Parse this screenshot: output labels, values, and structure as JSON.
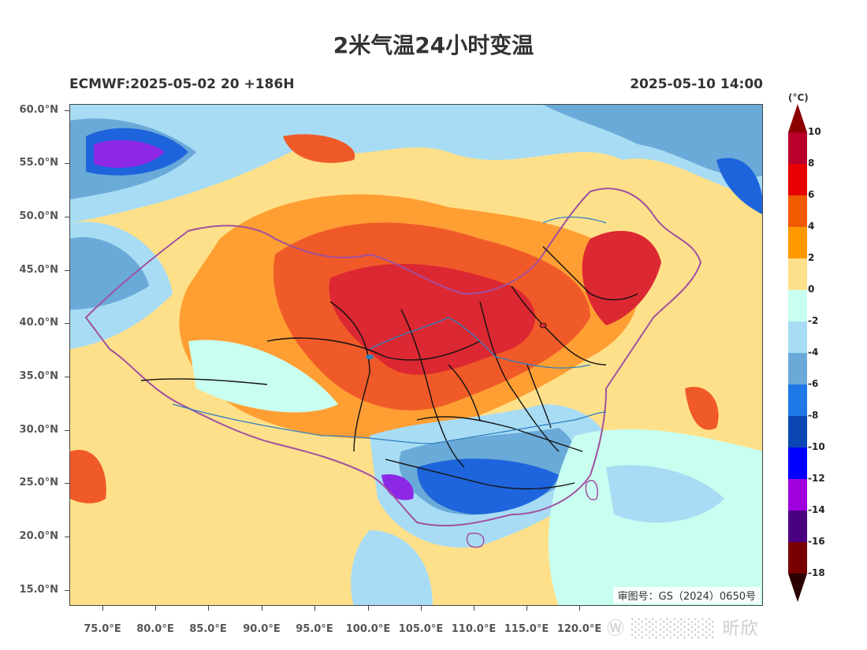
{
  "title": "2米气温24小时变温",
  "model_run": "ECMWF:2025-05-02 20 +186H",
  "valid_time": "2025-05-10 14:00",
  "unit": "(°C)",
  "approval_number": "审图号：GS（2024）0650号",
  "watermark": "Ⓦ ░░░░░░ 昕欣",
  "latitude_labels": [
    "60.0°N",
    "55.0°N",
    "50.0°N",
    "45.0°N",
    "40.0°N",
    "35.0°N",
    "30.0°N",
    "25.0°N",
    "20.0°N",
    "15.0°N"
  ],
  "longitude_labels": [
    "75.0°E",
    "80.0°E",
    "85.0°E",
    "90.0°E",
    "95.0°E",
    "100.0°E",
    "105.0°E",
    "110.0°E",
    "115.0°E",
    "120.0°E"
  ],
  "colorbar": {
    "labels": [
      "10",
      "8",
      "6",
      "4",
      "2",
      "0",
      "-2",
      "-4",
      "-6",
      "-8",
      "-10",
      "-12",
      "-14",
      "-16",
      "-18"
    ],
    "colors": [
      "#b8002a",
      "#e60000",
      "#f05a00",
      "#ff9900",
      "#ffe08a",
      "#c8fff0",
      "#a8dcf5",
      "#6aaad8",
      "#1e78e6",
      "#0a46b4",
      "#0000ff",
      "#a000dc",
      "#4b0082",
      "#780000"
    ],
    "top_color": "#8b0000",
    "bottom_color": "#2b0000"
  },
  "legend_colors": {
    "very_cold": "#8c28e6",
    "cold": "#1e64dc",
    "cool": "#6aaad8",
    "mild_cool": "#a8dcf5",
    "neutral": "#c8fff0",
    "warm_light": "#ffe08a",
    "warm": "#ff9f33",
    "hot": "#f05a28",
    "very_hot": "#dc2832",
    "border_national": "#a050a0",
    "border_province": "#111111",
    "river": "#2f7fbf"
  }
}
